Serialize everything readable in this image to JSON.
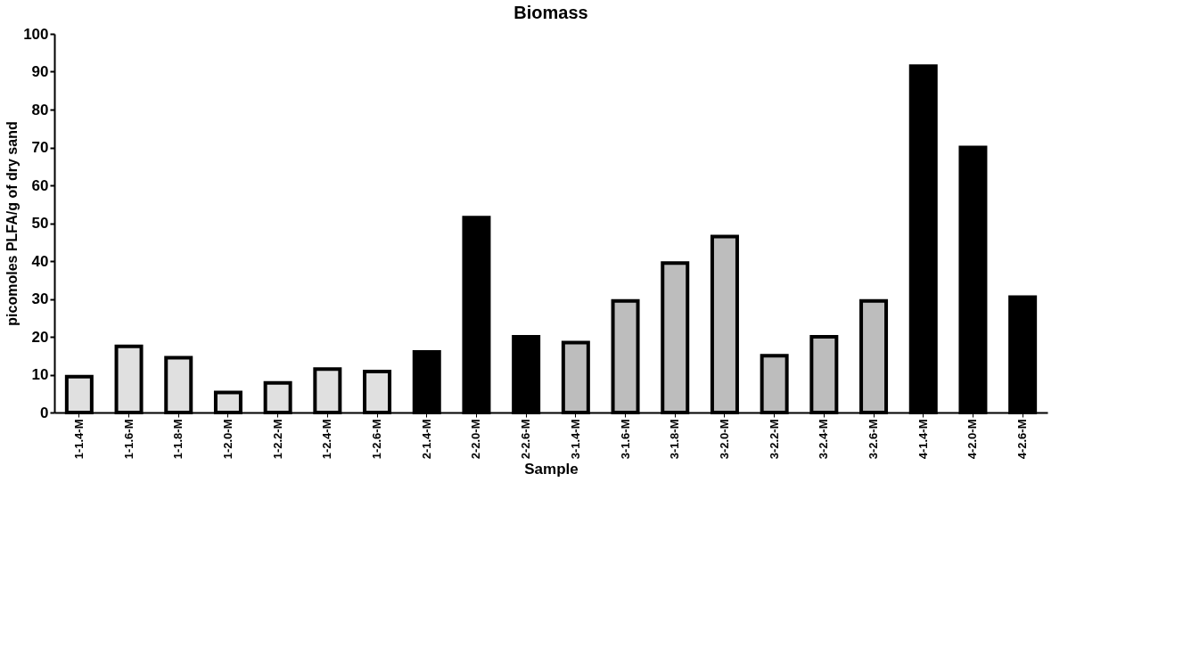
{
  "chart_data": {
    "type": "bar",
    "title": "Biomass",
    "xlabel": "Sample",
    "ylabel": "picomoles PLFA/g of dry sand",
    "categories": [
      "1-1.4-M",
      "1-1.6-M",
      "1-1.8-M",
      "1-2.0-M",
      "1-2.2-M",
      "1-2.4-M",
      "1-2.6-M",
      "2-1.4-M",
      "2-2.0-M",
      "2-2.6-M",
      "3-1.4-M",
      "3-1.6-M",
      "3-1.8-M",
      "3-2.0-M",
      "3-2.2-M",
      "3-2.4-M",
      "3-2.6-M",
      "4-1.4-M",
      "4-2.0-M",
      "4-2.6-M"
    ],
    "values": [
      9.5,
      17.5,
      14.5,
      5.3,
      7.8,
      11.5,
      10.8,
      16,
      51.5,
      20,
      18.5,
      29.5,
      39.5,
      46.5,
      15,
      20,
      29.5,
      91.5,
      70,
      30.5
    ],
    "colors": [
      "#e0e0e0",
      "#e0e0e0",
      "#e0e0e0",
      "#e0e0e0",
      "#e0e0e0",
      "#e0e0e0",
      "#e0e0e0",
      "#000000",
      "#000000",
      "#000000",
      "#bdbdbd",
      "#bdbdbd",
      "#bdbdbd",
      "#bdbdbd",
      "#bdbdbd",
      "#bdbdbd",
      "#bdbdbd",
      "#000000",
      "#000000",
      "#000000"
    ],
    "ylim": [
      0,
      100
    ],
    "yticks": [
      0,
      10,
      20,
      30,
      40,
      50,
      60,
      70,
      80,
      90,
      100
    ],
    "grid": false
  }
}
